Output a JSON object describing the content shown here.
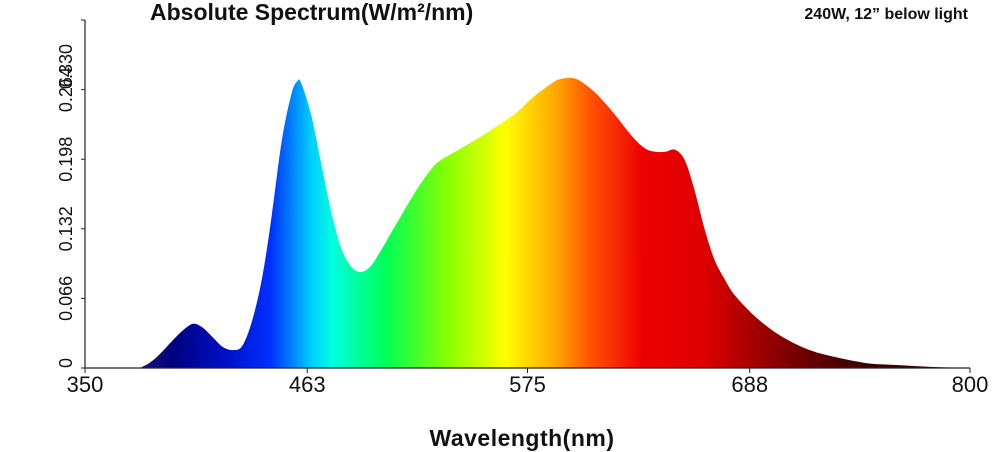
{
  "chart_data": {
    "type": "area",
    "title": "Absolute Spectrum(W/m²/nm)",
    "subtitle": "240W, 12” below light",
    "xlabel": "Wavelength(nm)",
    "ylabel": "",
    "xlim": [
      350,
      800
    ],
    "ylim": [
      0,
      0.33
    ],
    "x_ticks": [
      "350",
      "463",
      "575",
      "688",
      "800"
    ],
    "y_ticks": [
      "0",
      "0.066",
      "0.132",
      "0.198",
      "0.264",
      "0.330"
    ],
    "series": [
      {
        "x": [
          350,
          375,
          380,
          385,
          390,
          395,
          400,
          405,
          410,
          415,
          420,
          425,
          430,
          435,
          440,
          445,
          450,
          455,
          458,
          460,
          465,
          470,
          475,
          480,
          485,
          490,
          495,
          500,
          505,
          510,
          515,
          520,
          525,
          530,
          540,
          550,
          560,
          570,
          575,
          580,
          585,
          590,
          595,
          600,
          605,
          610,
          615,
          620,
          625,
          630,
          635,
          640,
          645,
          650,
          655,
          660,
          665,
          670,
          675,
          680,
          690,
          700,
          710,
          720,
          730,
          740,
          750,
          760,
          770,
          780,
          790,
          800
        ],
        "values": [
          0,
          0,
          0.002,
          0.008,
          0.017,
          0.027,
          0.036,
          0.042,
          0.038,
          0.029,
          0.02,
          0.017,
          0.021,
          0.045,
          0.085,
          0.145,
          0.215,
          0.26,
          0.272,
          0.27,
          0.24,
          0.195,
          0.15,
          0.115,
          0.097,
          0.091,
          0.096,
          0.11,
          0.126,
          0.142,
          0.158,
          0.173,
          0.186,
          0.196,
          0.207,
          0.218,
          0.23,
          0.243,
          0.252,
          0.26,
          0.267,
          0.273,
          0.275,
          0.274,
          0.268,
          0.26,
          0.25,
          0.239,
          0.227,
          0.216,
          0.208,
          0.205,
          0.205,
          0.207,
          0.197,
          0.168,
          0.132,
          0.103,
          0.085,
          0.07,
          0.05,
          0.035,
          0.024,
          0.016,
          0.011,
          0.007,
          0.004,
          0.003,
          0.002,
          0.001,
          0.0005,
          0
        ]
      }
    ],
    "grid": false,
    "legend": "none",
    "fill": "visible-spectrum gradient"
  },
  "colors": {
    "spectrum_stops": [
      "#1a1a66",
      "#000099",
      "#0022cc",
      "#0055ff",
      "#00e5ff",
      "#00ff66",
      "#66ff00",
      "#ffff00",
      "#ffaa00",
      "#ff5500",
      "#ee0000",
      "#cc0000",
      "#990000",
      "#4d0000",
      "#2b0000"
    ]
  }
}
